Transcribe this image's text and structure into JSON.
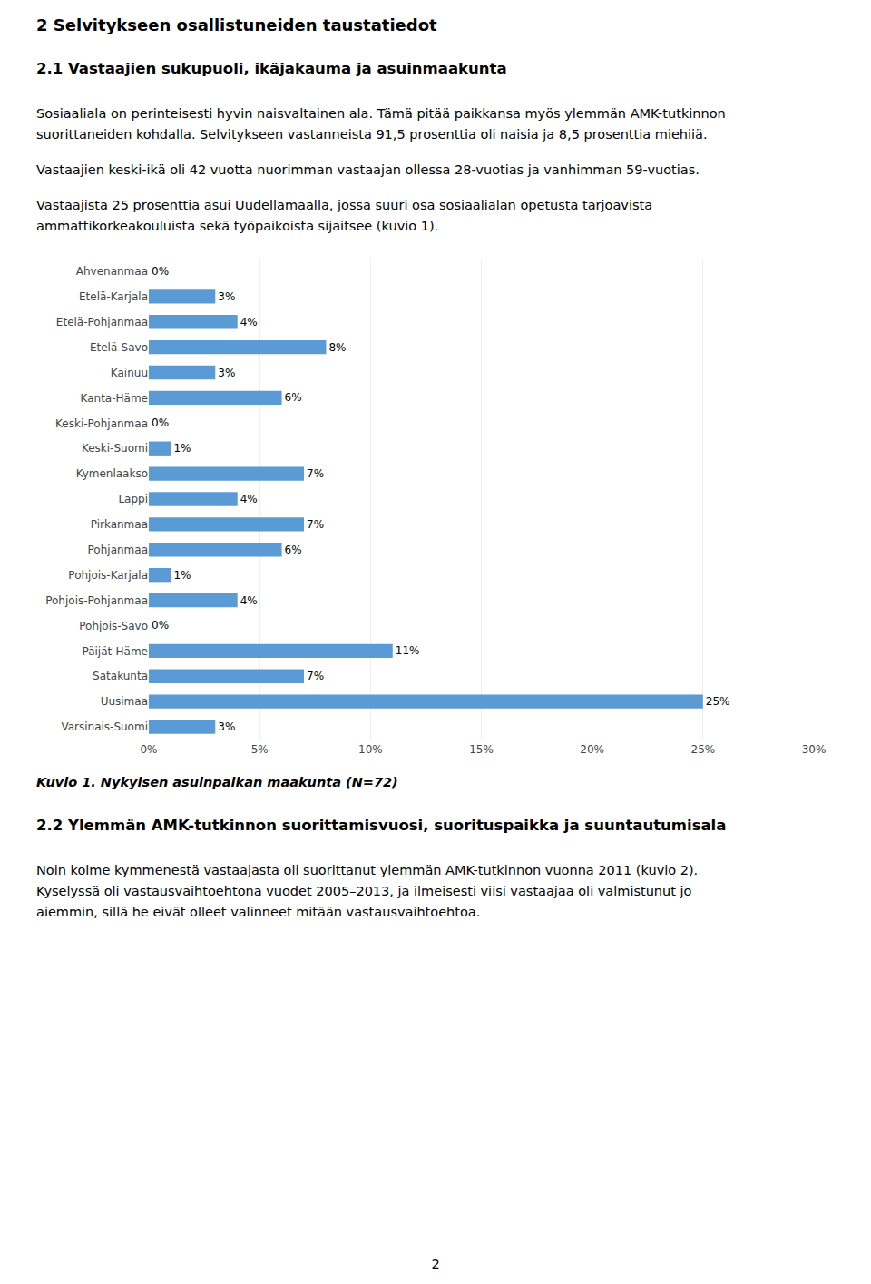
{
  "chart_data": {
    "type": "bar",
    "orientation": "horizontal",
    "title": "Kuvio 1. Nykyisen asuinpaikan maakunta (N=72)",
    "annotations": [
      "2 Selvitykseen osallistuneiden taustatiedot",
      "2.1 Vastaajien sukupuoli, ikäjakauma ja asuinmaakunta",
      "Sosiaaliala on perinteisesti hyvin naisvaltainen ala. Tämä pitää paikkansa myös ylemmän AMK-tutkinnon",
      "suorittaneiden kohdalla. Selvitykseen vastanneista 91,5 prosenttia oli naisia ja 8,5 prosenttia miehiiä.",
      "Vastaajien keski-ikä oli 42 vuotta nuorimman vastaajan ollessa 28-vuotias ja vanhimman 59-vuotias.",
      "Vastaajista 25 prosenttia asui Uudellamaalla, jossa suuri osa sosiaalialan opetusta tarjoavista",
      "ammattikorkeakouluista sekä työpaikoista sijaitsee (kuvio 1).",
      "2.2 Ylemmän AMK-tutkinnon suorittamisvuosi, suorituspaikka ja suuntautumisala",
      "Noin kolme kymmenestä vastaajasta oli suorittanut ylemmän AMK-tutkinnon vuonna 2011 (kuvio 2).",
      "Kyselyssä oli vastausvaihtoehtona vuodet 2005–2013, ja ilmeisesti viisi vastaajaa oli valmistunut jo",
      "aiemmin, sillä he eivät olleet valinneet mitään vastausvaihtoehtoa.",
      "2"
    ],
    "categories": [
      "Ahvenanmaa",
      "Etelä-Karjala",
      "Etelä-Pohjanmaa",
      "Etelä-Savo",
      "Kainuu",
      "Kanta-Häme",
      "Keski-Pohjanmaa",
      "Keski-Suomi",
      "Kymenlaakso",
      "Lappi",
      "Pirkanmaa",
      "Pohjanmaa",
      "Pohjois-Karjala",
      "Pohjois-Pohjanmaa",
      "Pohjois-Savo",
      "Päijät-Häme",
      "Satakunta",
      "Uusimaa",
      "Varsinais-Suomi"
    ],
    "values": [
      0,
      3,
      4,
      8,
      3,
      6,
      0,
      1,
      7,
      4,
      7,
      6,
      1,
      4,
      0,
      11,
      7,
      25,
      3
    ],
    "value_labels": [
      "0%",
      "3%",
      "4%",
      "8%",
      "3%",
      "6%",
      "0%",
      "1%",
      "7%",
      "4%",
      "7%",
      "6%",
      "1%",
      "4%",
      "0%",
      "11%",
      "7%",
      "25%",
      "3%"
    ],
    "data_labels": true,
    "color": "#5b9bd5",
    "xlim": [
      0,
      30
    ],
    "xticks": [
      {
        "value": 0,
        "label": "0%"
      },
      {
        "value": 5,
        "label": "5%"
      },
      {
        "value": 10,
        "label": "10%"
      },
      {
        "value": 15,
        "label": "15%"
      },
      {
        "value": 20,
        "label": "20%"
      },
      {
        "value": 25,
        "label": "25%"
      },
      {
        "value": 30,
        "label": "30%"
      }
    ],
    "grid": true
  }
}
